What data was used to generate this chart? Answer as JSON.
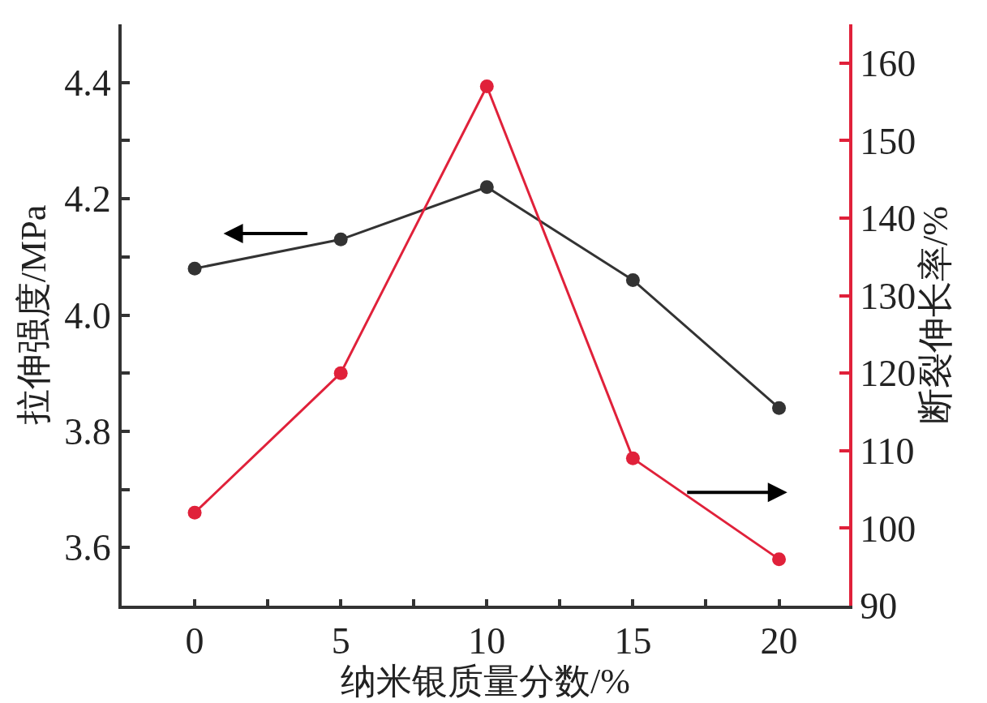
{
  "chart_data": {
    "type": "line",
    "xlabel": "纳米银质量分数/%",
    "ylabel": "拉伸强度/MPa",
    "y2label": "断裂伸长率/%",
    "x": [
      0,
      5,
      10,
      15,
      20
    ],
    "series": [
      {
        "color": "#333333",
        "values": [
          4.08,
          4.13,
          4.22,
          4.06,
          3.84
        ]
      },
      {
        "color": "#e0213a",
        "values": [
          102,
          120,
          157,
          109,
          96
        ],
        "axis": "y2"
      }
    ],
    "xlim": [
      -2.5,
      22.4
    ],
    "xticks": [
      0,
      {
        "value": 2.5,
        "label": null
      },
      5,
      {
        "value": 7.5,
        "label": null
      },
      10,
      {
        "value": 12.5,
        "label": null
      },
      15,
      {
        "value": 17.5,
        "label": null
      },
      20
    ],
    "ylim": [
      3.5,
      4.5
    ],
    "yticks": [
      {
        "value": 3.5,
        "label": null
      },
      3.6,
      {
        "value": 3.7,
        "label": null
      },
      3.8,
      {
        "value": 3.9,
        "label": null
      },
      "4.0",
      {
        "value": 4.1,
        "label": null
      },
      4.2,
      {
        "value": 4.3,
        "label": null
      },
      4.4
    ],
    "y2lim": [
      90,
      165
    ],
    "y2ticks": [
      90,
      100,
      110,
      120,
      130,
      140,
      150,
      160
    ],
    "marker": "circle",
    "line_style": "solid"
  }
}
